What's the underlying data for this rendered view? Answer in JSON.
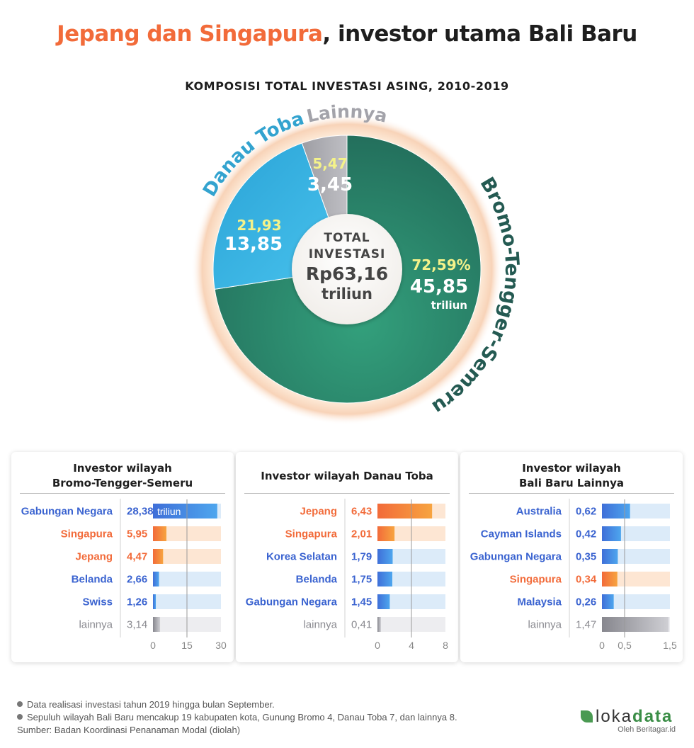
{
  "header": {
    "title_accent": "Jepang dan Singapura",
    "title_rest": ", investor utama Bali Baru",
    "subtitle": "KOMPOSISI TOTAL INVESTASI ASING, 2010-2019"
  },
  "chart_data": [
    {
      "type": "pie",
      "title": "KOMPOSISI TOTAL INVESTASI ASING, 2010-2019",
      "unit": "triliun",
      "center": {
        "line1": "TOTAL",
        "line2": "INVESTASI",
        "line3": "Rp63,16",
        "line4": "triliun"
      },
      "slices": [
        {
          "label": "Bromo-Tengger-Semeru",
          "value": 45.85,
          "value_text": "45,85",
          "percent": 72.59,
          "percent_text": "72,59%",
          "unit_text": "triliun"
        },
        {
          "label": "Danau Toba",
          "value": 13.85,
          "value_text": "13,85",
          "percent": 21.93,
          "percent_text": "21,93"
        },
        {
          "label": "Lainnya",
          "value": 3.45,
          "value_text": "3,45",
          "percent": 5.47,
          "percent_text": "5,47"
        }
      ]
    },
    {
      "type": "bar",
      "title": "Investor wilayah Bromo-Tengger-Semeru",
      "title_lines": [
        "Investor wilayah",
        "Bromo-Tengger-Semeru"
      ],
      "categories": [
        "Gabungan Negara",
        "Singapura",
        "Jepang",
        "Belanda",
        "Swiss",
        "lainnya"
      ],
      "values": [
        28.38,
        5.95,
        4.47,
        2.66,
        1.26,
        3.14
      ],
      "value_labels": [
        "28,38",
        "5,95",
        "4,47",
        "2,66",
        "1,26",
        "3,14"
      ],
      "colors": [
        "blue",
        "orange",
        "orange",
        "blue",
        "blue",
        "gray"
      ],
      "xlim": [
        0,
        30
      ],
      "ticks": [
        0,
        15,
        30
      ],
      "tick_labels": [
        "0",
        "15",
        "30"
      ],
      "unit_label": "triliun"
    },
    {
      "type": "bar",
      "title": "Investor wilayah Danau Toba",
      "title_lines": [
        "Investor wilayah Danau Toba"
      ],
      "categories": [
        "Jepang",
        "Singapura",
        "Korea Selatan",
        "Belanda",
        "Gabungan Negara",
        "lainnya"
      ],
      "values": [
        6.43,
        2.01,
        1.79,
        1.75,
        1.45,
        0.41
      ],
      "value_labels": [
        "6,43",
        "2,01",
        "1,79",
        "1,75",
        "1,45",
        "0,41"
      ],
      "colors": [
        "orange",
        "orange",
        "blue",
        "blue",
        "blue",
        "gray"
      ],
      "xlim": [
        0,
        8
      ],
      "ticks": [
        0,
        4,
        8
      ],
      "tick_labels": [
        "0",
        "4",
        "8"
      ]
    },
    {
      "type": "bar",
      "title": "Investor wilayah Bali Baru Lainnya",
      "title_lines": [
        "Investor wilayah",
        "Bali Baru Lainnya"
      ],
      "categories": [
        "Australia",
        "Cayman Islands",
        "Gabungan Negara",
        "Singapura",
        "Malaysia",
        "lainnya"
      ],
      "values": [
        0.62,
        0.42,
        0.35,
        0.34,
        0.26,
        1.47
      ],
      "value_labels": [
        "0,62",
        "0,42",
        "0,35",
        "0,34",
        "0,26",
        "1,47"
      ],
      "colors": [
        "blue",
        "blue",
        "blue",
        "orange",
        "blue",
        "gray"
      ],
      "xlim": [
        0,
        1.5
      ],
      "ticks": [
        0,
        0.5,
        1.5
      ],
      "tick_labels": [
        "0",
        "0,5",
        "1,5"
      ]
    }
  ],
  "footnotes": [
    "Data realisasi investasi tahun 2019 hingga bulan September.",
    "Sepuluh wilayah Bali Baru mencakup 19 kabupaten kota, Gunung Bromo 4, Danau Toba 7, dan lainnya 8.",
    "Sumber: Badan Koordinasi Penanaman Modal (diolah)"
  ],
  "brand": {
    "name_part1": "loka",
    "name_part2": "data",
    "byline": "Oleh Beritagar.id"
  },
  "colors": {
    "accent_orange": "#f26b3a",
    "bromo_green": "#2c8a6e",
    "bromo_label": "#245a52",
    "toba_blue": "#2fb3e3",
    "toba_label": "#33a3cf",
    "lainnya_gray": "#a8a8ad",
    "yellow_pct": "#f4f28a",
    "bar_blue": "#3f6fd8",
    "bar_orange": "#f26b3a",
    "bar_gray": "#8e8e94"
  }
}
